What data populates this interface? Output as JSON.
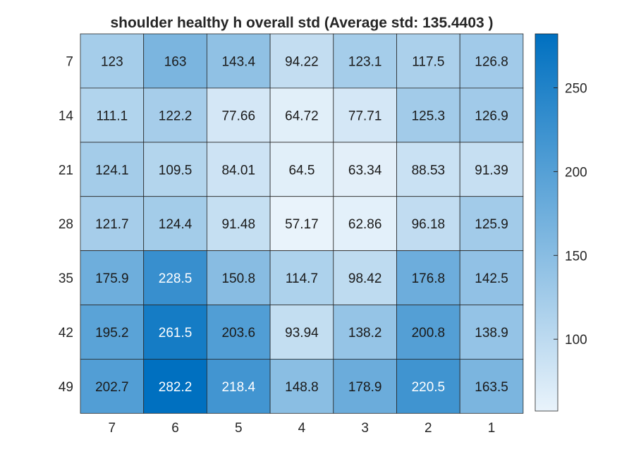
{
  "chart_data": {
    "type": "heatmap",
    "title": "shoulder healthy h overall std (Average std: 135.4403 )",
    "x_categories": [
      "7",
      "6",
      "5",
      "4",
      "3",
      "2",
      "1"
    ],
    "y_categories": [
      "7",
      "14",
      "21",
      "28",
      "35",
      "42",
      "49"
    ],
    "values": [
      [
        123,
        163,
        143.4,
        94.22,
        123.1,
        117.5,
        126.8
      ],
      [
        111.1,
        122.2,
        77.66,
        64.72,
        77.71,
        125.3,
        126.9
      ],
      [
        124.1,
        109.5,
        84.01,
        64.5,
        63.34,
        88.53,
        91.39
      ],
      [
        121.7,
        124.4,
        91.48,
        57.17,
        62.86,
        96.18,
        125.9
      ],
      [
        175.9,
        228.5,
        150.8,
        114.7,
        98.42,
        176.8,
        142.5
      ],
      [
        195.2,
        261.5,
        203.6,
        93.94,
        138.2,
        200.8,
        138.9
      ],
      [
        202.7,
        282.2,
        218.4,
        148.8,
        178.9,
        220.5,
        163.5
      ]
    ],
    "value_labels": [
      [
        "123",
        "163",
        "143.4",
        "94.22",
        "123.1",
        "117.5",
        "126.8"
      ],
      [
        "111.1",
        "122.2",
        "77.66",
        "64.72",
        "77.71",
        "125.3",
        "126.9"
      ],
      [
        "124.1",
        "109.5",
        "84.01",
        "64.5",
        "63.34",
        "88.53",
        "91.39"
      ],
      [
        "121.7",
        "124.4",
        "91.48",
        "57.17",
        "62.86",
        "96.18",
        "125.9"
      ],
      [
        "175.9",
        "228.5",
        "150.8",
        "114.7",
        "98.42",
        "176.8",
        "142.5"
      ],
      [
        "195.2",
        "261.5",
        "203.6",
        "93.94",
        "138.2",
        "200.8",
        "138.9"
      ],
      [
        "202.7",
        "282.2",
        "218.4",
        "148.8",
        "178.9",
        "220.5",
        "163.5"
      ]
    ],
    "colorbar": {
      "ticks": [
        "100",
        "150",
        "200",
        "250"
      ],
      "range": [
        57.17,
        282.2
      ]
    },
    "colormap": {
      "low": "#e9f3fb",
      "high": "#0070c0"
    },
    "grid": true,
    "legend": "colorbar-right"
  }
}
